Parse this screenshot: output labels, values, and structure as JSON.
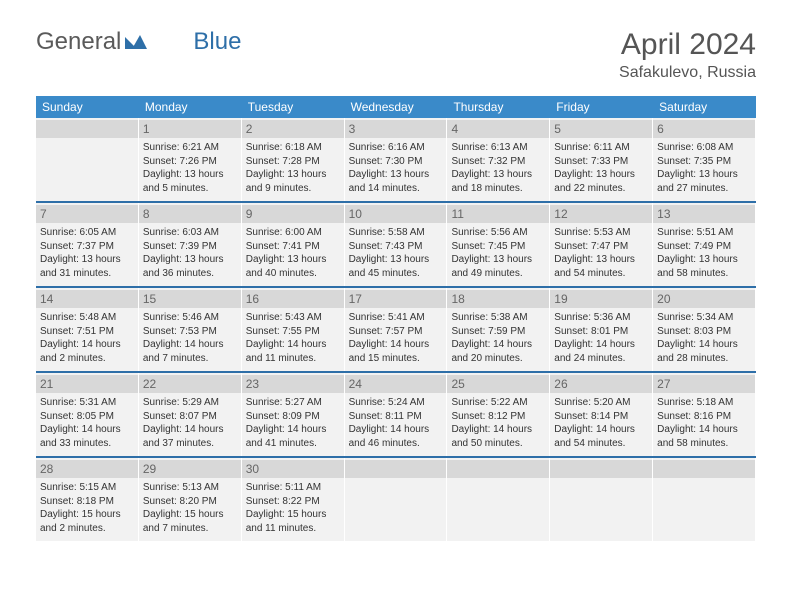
{
  "logo": {
    "text1": "General",
    "text2": "Blue",
    "accent": "#2e6fa8"
  },
  "title": "April 2024",
  "location": "Safakulevo, Russia",
  "colors": {
    "header_bg": "#3a8ac9",
    "header_text": "#ffffff",
    "daynum_bg": "#d8d8d8",
    "cell_bg": "#f2f2f2",
    "sep": "#2e6fa8",
    "body_text": "#333333"
  },
  "dow": [
    "Sunday",
    "Monday",
    "Tuesday",
    "Wednesday",
    "Thursday",
    "Friday",
    "Saturday"
  ],
  "weeks": [
    [
      null,
      {
        "n": "1",
        "sr": "6:21 AM",
        "ss": "7:26 PM",
        "dl": "13 hours and 5 minutes."
      },
      {
        "n": "2",
        "sr": "6:18 AM",
        "ss": "7:28 PM",
        "dl": "13 hours and 9 minutes."
      },
      {
        "n": "3",
        "sr": "6:16 AM",
        "ss": "7:30 PM",
        "dl": "13 hours and 14 minutes."
      },
      {
        "n": "4",
        "sr": "6:13 AM",
        "ss": "7:32 PM",
        "dl": "13 hours and 18 minutes."
      },
      {
        "n": "5",
        "sr": "6:11 AM",
        "ss": "7:33 PM",
        "dl": "13 hours and 22 minutes."
      },
      {
        "n": "6",
        "sr": "6:08 AM",
        "ss": "7:35 PM",
        "dl": "13 hours and 27 minutes."
      }
    ],
    [
      {
        "n": "7",
        "sr": "6:05 AM",
        "ss": "7:37 PM",
        "dl": "13 hours and 31 minutes."
      },
      {
        "n": "8",
        "sr": "6:03 AM",
        "ss": "7:39 PM",
        "dl": "13 hours and 36 minutes."
      },
      {
        "n": "9",
        "sr": "6:00 AM",
        "ss": "7:41 PM",
        "dl": "13 hours and 40 minutes."
      },
      {
        "n": "10",
        "sr": "5:58 AM",
        "ss": "7:43 PM",
        "dl": "13 hours and 45 minutes."
      },
      {
        "n": "11",
        "sr": "5:56 AM",
        "ss": "7:45 PM",
        "dl": "13 hours and 49 minutes."
      },
      {
        "n": "12",
        "sr": "5:53 AM",
        "ss": "7:47 PM",
        "dl": "13 hours and 54 minutes."
      },
      {
        "n": "13",
        "sr": "5:51 AM",
        "ss": "7:49 PM",
        "dl": "13 hours and 58 minutes."
      }
    ],
    [
      {
        "n": "14",
        "sr": "5:48 AM",
        "ss": "7:51 PM",
        "dl": "14 hours and 2 minutes."
      },
      {
        "n": "15",
        "sr": "5:46 AM",
        "ss": "7:53 PM",
        "dl": "14 hours and 7 minutes."
      },
      {
        "n": "16",
        "sr": "5:43 AM",
        "ss": "7:55 PM",
        "dl": "14 hours and 11 minutes."
      },
      {
        "n": "17",
        "sr": "5:41 AM",
        "ss": "7:57 PM",
        "dl": "14 hours and 15 minutes."
      },
      {
        "n": "18",
        "sr": "5:38 AM",
        "ss": "7:59 PM",
        "dl": "14 hours and 20 minutes."
      },
      {
        "n": "19",
        "sr": "5:36 AM",
        "ss": "8:01 PM",
        "dl": "14 hours and 24 minutes."
      },
      {
        "n": "20",
        "sr": "5:34 AM",
        "ss": "8:03 PM",
        "dl": "14 hours and 28 minutes."
      }
    ],
    [
      {
        "n": "21",
        "sr": "5:31 AM",
        "ss": "8:05 PM",
        "dl": "14 hours and 33 minutes."
      },
      {
        "n": "22",
        "sr": "5:29 AM",
        "ss": "8:07 PM",
        "dl": "14 hours and 37 minutes."
      },
      {
        "n": "23",
        "sr": "5:27 AM",
        "ss": "8:09 PM",
        "dl": "14 hours and 41 minutes."
      },
      {
        "n": "24",
        "sr": "5:24 AM",
        "ss": "8:11 PM",
        "dl": "14 hours and 46 minutes."
      },
      {
        "n": "25",
        "sr": "5:22 AM",
        "ss": "8:12 PM",
        "dl": "14 hours and 50 minutes."
      },
      {
        "n": "26",
        "sr": "5:20 AM",
        "ss": "8:14 PM",
        "dl": "14 hours and 54 minutes."
      },
      {
        "n": "27",
        "sr": "5:18 AM",
        "ss": "8:16 PM",
        "dl": "14 hours and 58 minutes."
      }
    ],
    [
      {
        "n": "28",
        "sr": "5:15 AM",
        "ss": "8:18 PM",
        "dl": "15 hours and 2 minutes."
      },
      {
        "n": "29",
        "sr": "5:13 AM",
        "ss": "8:20 PM",
        "dl": "15 hours and 7 minutes."
      },
      {
        "n": "30",
        "sr": "5:11 AM",
        "ss": "8:22 PM",
        "dl": "15 hours and 11 minutes."
      },
      null,
      null,
      null,
      null
    ]
  ],
  "labels": {
    "sunrise": "Sunrise:",
    "sunset": "Sunset:",
    "daylight": "Daylight:"
  }
}
